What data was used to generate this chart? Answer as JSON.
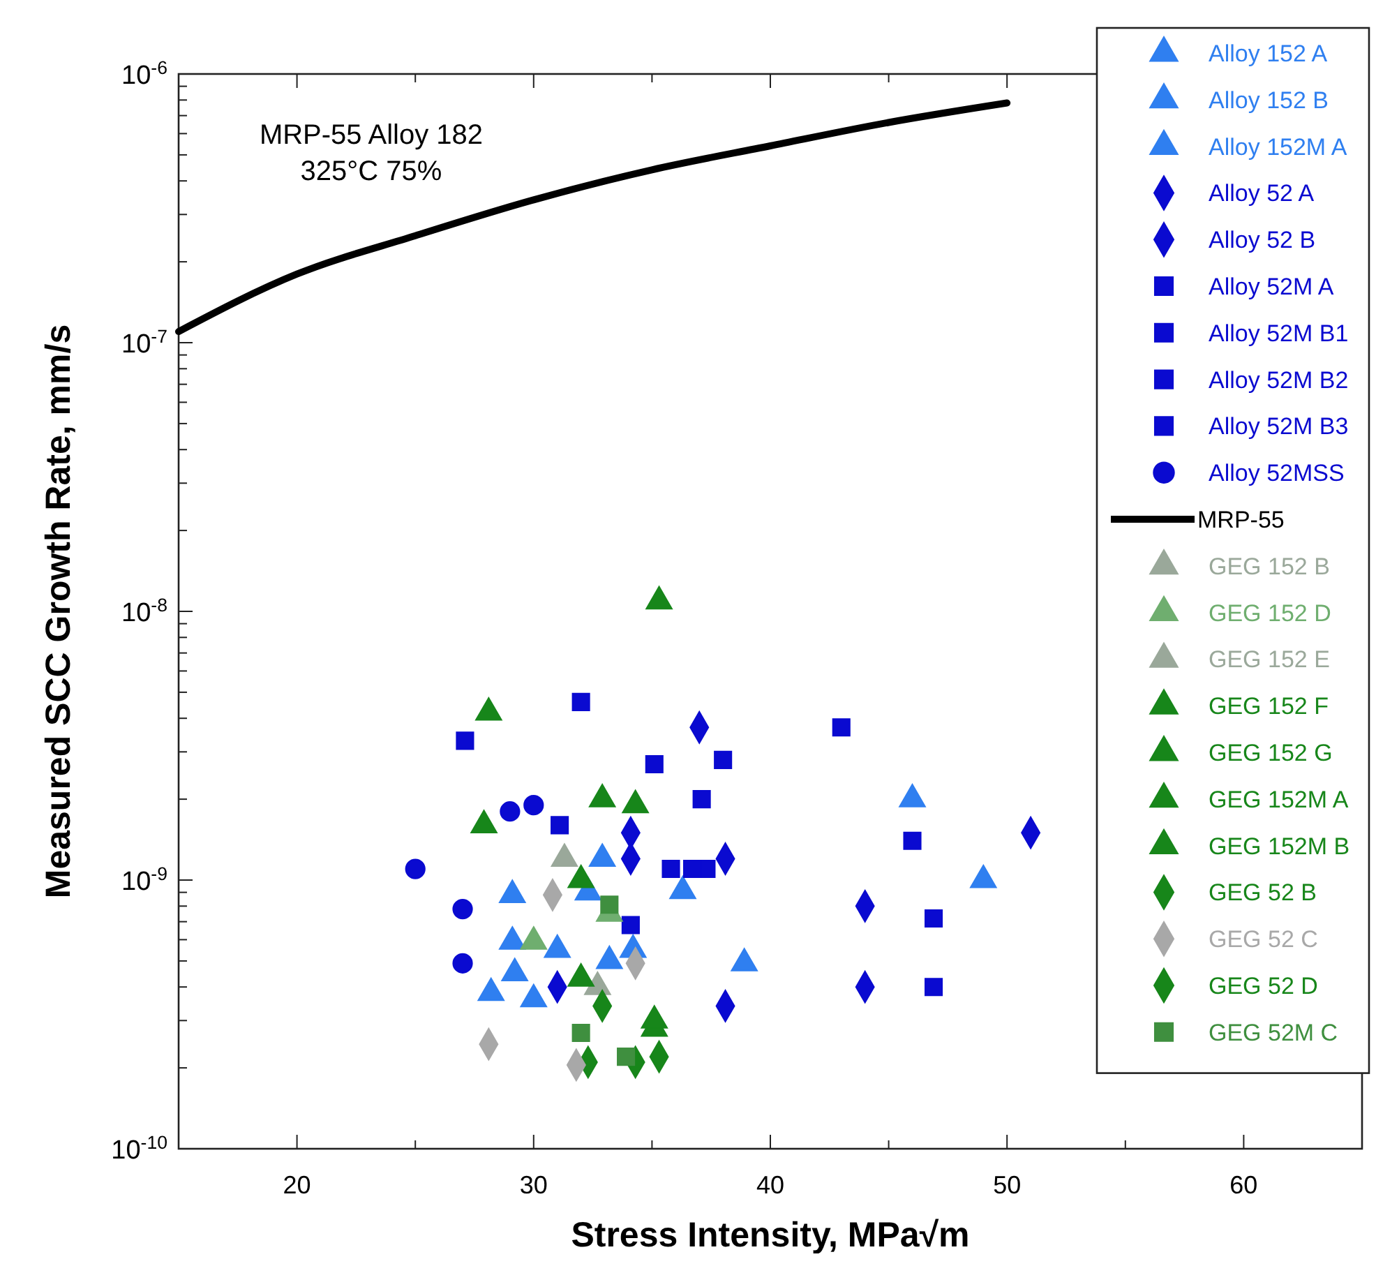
{
  "chart_data": {
    "type": "scatter",
    "xlabel": "Stress Intensity, MPa√m",
    "ylabel": "Measured SCC Growth Rate, mm/s",
    "log": "y",
    "xlim": [
      15,
      65
    ],
    "ylim": [
      1e-10,
      1e-06
    ],
    "xticks": [
      20,
      {
        "value": 25,
        "label": null
      },
      30,
      {
        "value": 35,
        "label": null
      },
      40,
      {
        "value": 45,
        "label": null
      },
      50,
      {
        "value": 55,
        "label": null
      },
      60
    ],
    "yticks": [
      {
        "value": 1e-10,
        "label": "10$^{-10}$"
      },
      {
        "value": 2e-10,
        "label": null
      },
      {
        "value": 3e-10,
        "label": null
      },
      {
        "value": 4e-10,
        "label": null
      },
      {
        "value": 5e-10,
        "label": null
      },
      {
        "value": 6e-10,
        "label": null
      },
      {
        "value": 7e-10,
        "label": null
      },
      {
        "value": 8e-10,
        "label": null
      },
      {
        "value": 9e-10,
        "label": null
      },
      {
        "value": 1e-09,
        "label": "10$^{-9}$"
      },
      {
        "value": 2e-09,
        "label": null
      },
      {
        "value": 3e-09,
        "label": null
      },
      {
        "value": 4e-09,
        "label": null
      },
      {
        "value": 5e-09,
        "label": null
      },
      {
        "value": 6e-09,
        "label": null
      },
      {
        "value": 7e-09,
        "label": null
      },
      {
        "value": 8e-09,
        "label": null
      },
      {
        "value": 9e-09,
        "label": null
      },
      {
        "value": 1e-08,
        "label": "10$^{-8}$"
      },
      {
        "value": 2e-08,
        "label": null
      },
      {
        "value": 3e-08,
        "label": null
      },
      {
        "value": 4e-08,
        "label": null
      },
      {
        "value": 5e-08,
        "label": null
      },
      {
        "value": 6e-08,
        "label": null
      },
      {
        "value": 7e-08,
        "label": null
      },
      {
        "value": 8e-08,
        "label": null
      },
      {
        "value": 9e-08,
        "label": null
      },
      {
        "value": 1e-07,
        "label": "10$^{-7}$"
      },
      {
        "value": 2e-07,
        "label": null
      },
      {
        "value": 3e-07,
        "label": null
      },
      {
        "value": 4e-07,
        "label": null
      },
      {
        "value": 5e-07,
        "label": null
      },
      {
        "value": 6e-07,
        "label": null
      },
      {
        "value": 7e-07,
        "label": null
      },
      {
        "value": 8e-07,
        "label": null
      },
      {
        "value": 9e-07,
        "label": null
      },
      {
        "value": 1e-06,
        "label": "10$^{-6}$"
      }
    ],
    "grid": false,
    "legend": "top right",
    "annotations": [
      "MRP-55 Alloy 182",
      "325°C 75%"
    ],
    "series": [
      {
        "name": "Alloy 152 A",
        "color": "#2f7ff0",
        "marker": "triangle",
        "x": [
          46,
          49,
          33.2,
          34.2
        ],
        "values": [
          2e-09,
          1e-09,
          5e-10,
          5.5e-10
        ]
      },
      {
        "name": "Alloy 152 B",
        "color": "#2f7ff0",
        "marker": "triangle",
        "x": [
          38.9,
          36.3,
          32.9,
          31,
          30,
          32.3
        ],
        "values": [
          4.9e-10,
          9.1e-10,
          1.2e-09,
          5.5e-10,
          3.6e-10,
          9e-10
        ]
      },
      {
        "name": "Alloy 152M A",
        "color": "#2f7ff0",
        "marker": "triangle",
        "x": [
          29.1,
          29.1,
          29.2,
          28.2
        ],
        "values": [
          8.8e-10,
          5.9e-10,
          4.5e-10,
          3.8e-10
        ]
      },
      {
        "name": "Alloy 52 A",
        "color": "#0a0ad0",
        "marker": "diamond",
        "x": [
          44,
          38.1,
          31,
          34.1,
          34.1
        ],
        "values": [
          4e-10,
          3.4e-10,
          4e-10,
          1.5e-09,
          1.2e-09
        ]
      },
      {
        "name": "Alloy 52 B",
        "color": "#0a0ad0",
        "marker": "diamond",
        "x": [
          51,
          44,
          38.1,
          37
        ],
        "values": [
          1.5e-09,
          8e-10,
          1.2e-09,
          3.7e-09
        ]
      },
      {
        "name": "Alloy 52M A",
        "color": "#0a0ad0",
        "marker": "square",
        "x": [
          27.1,
          32,
          35.1,
          43,
          35.8
        ],
        "values": [
          3.3e-09,
          4.6e-09,
          2.7e-09,
          3.7e-09,
          1.1e-09
        ]
      },
      {
        "name": "Alloy 52M B1",
        "color": "#0a0ad0",
        "marker": "square",
        "x": [
          37.1,
          37.3
        ],
        "values": [
          2e-09,
          1.1e-09
        ]
      },
      {
        "name": "Alloy 52M B2",
        "color": "#0a0ad0",
        "marker": "square",
        "x": [
          46,
          46.9,
          46.9,
          34.1
        ],
        "values": [
          1.4e-09,
          7.2e-10,
          4e-10,
          6.8e-10
        ]
      },
      {
        "name": "Alloy 52M B3",
        "color": "#0a0ad0",
        "marker": "square",
        "x": [
          31.1,
          36.7,
          38
        ],
        "values": [
          1.6e-09,
          1.1e-09,
          2.8e-09
        ]
      },
      {
        "name": "Alloy 52MSS",
        "color": "#0a0ad0",
        "marker": "circle",
        "x": [
          25,
          27,
          27,
          29,
          30
        ],
        "values": [
          1.1e-09,
          7.8e-10,
          4.9e-10,
          1.8e-09,
          1.9e-09
        ]
      },
      {
        "name": "MRP-55",
        "type": "line",
        "color": "#000000",
        "marker": "none",
        "x": [
          15,
          20,
          25,
          30,
          35,
          40,
          45,
          50
        ],
        "values": [
          1.1e-07,
          1.8e-07,
          2.5e-07,
          3.4e-07,
          4.4e-07,
          5.4e-07,
          6.6e-07,
          7.8e-07
        ]
      },
      {
        "name": "GEG 152 B",
        "color": "#9aa89a",
        "marker": "triangle",
        "x": [
          31.3
        ],
        "values": [
          1.2e-09
        ]
      },
      {
        "name": "GEG 152 D",
        "color": "#6fae6f",
        "marker": "triangle",
        "x": [
          30,
          33.2
        ],
        "values": [
          5.9e-10,
          7.5e-10
        ]
      },
      {
        "name": "GEG 152 E",
        "color": "#9aa89a",
        "marker": "triangle",
        "x": [
          32.7
        ],
        "values": [
          4e-10
        ]
      },
      {
        "name": "GEG 152 F",
        "color": "#17861a",
        "marker": "triangle",
        "x": [
          28.1,
          27.9,
          32.9
        ],
        "values": [
          4.2e-09,
          1.6e-09,
          2e-09
        ]
      },
      {
        "name": "GEG 152 G",
        "color": "#17861a",
        "marker": "triangle",
        "x": [
          32
        ],
        "values": [
          1e-09
        ]
      },
      {
        "name": "GEG 152M A",
        "color": "#17861a",
        "marker": "triangle",
        "x": [
          35.3,
          34.3,
          35.1
        ],
        "values": [
          1.09e-08,
          1.9e-09,
          2.8e-10
        ]
      },
      {
        "name": "GEG 152M B",
        "color": "#17861a",
        "marker": "triangle",
        "x": [
          35.1,
          32
        ],
        "values": [
          3e-10,
          4.3e-10
        ]
      },
      {
        "name": "GEG 52 B",
        "color": "#17861a",
        "marker": "diamond",
        "x": [
          32.3,
          34.3
        ],
        "values": [
          2.1e-10,
          2.1e-10
        ]
      },
      {
        "name": "GEG 52 C",
        "color": "#a8a8a8",
        "marker": "diamond",
        "x": [
          28.1,
          34.3,
          31.8,
          30.8
        ],
        "values": [
          2.45e-10,
          4.9e-10,
          2.05e-10,
          8.8e-10
        ]
      },
      {
        "name": "GEG 52 D",
        "color": "#17861a",
        "marker": "diamond",
        "x": [
          32.9,
          35.3
        ],
        "values": [
          3.4e-10,
          2.2e-10
        ]
      },
      {
        "name": "GEG 52M C",
        "color": "#3f8f3f",
        "marker": "square",
        "x": [
          32,
          33.9,
          33.2
        ],
        "values": [
          2.7e-10,
          2.2e-10,
          8.1e-10
        ]
      }
    ]
  }
}
